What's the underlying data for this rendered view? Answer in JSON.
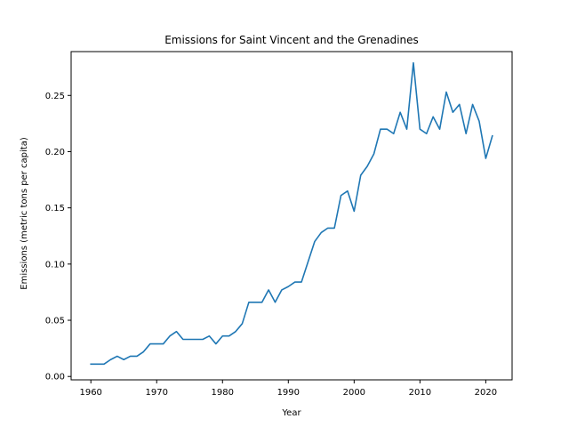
{
  "chart_data": {
    "type": "line",
    "title": "Emissions for Saint Vincent and the Grenadines",
    "xlabel": "Year",
    "ylabel": "Emissions (metric tons per capita)",
    "xlim": [
      1957,
      2024
    ],
    "ylim": [
      -0.003,
      0.289
    ],
    "xticks": [
      1960,
      1970,
      1980,
      1990,
      2000,
      2010,
      2020
    ],
    "yticks": [
      0.0,
      0.05,
      0.1,
      0.15,
      0.2,
      0.25
    ],
    "ytick_labels": [
      "0.00",
      "0.05",
      "0.10",
      "0.15",
      "0.20",
      "0.25"
    ],
    "grid": false,
    "line_color": "#1f77b4",
    "series": [
      {
        "x": [
          1960,
          1961,
          1962,
          1963,
          1964,
          1965,
          1966,
          1967,
          1968,
          1969,
          1970,
          1971,
          1972,
          1973,
          1974,
          1975,
          1976,
          1977,
          1978,
          1979,
          1980,
          1981,
          1982,
          1983,
          1984,
          1985,
          1986,
          1987,
          1988,
          1989,
          1990,
          1991,
          1992,
          1993,
          1994,
          1995,
          1996,
          1997,
          1998,
          1999,
          2000,
          2001,
          2002,
          2003,
          2004,
          2005,
          2006,
          2007,
          2008,
          2009,
          2010,
          2011,
          2012,
          2013,
          2014,
          2015,
          2016,
          2017,
          2018,
          2019,
          2020,
          2021
        ],
        "values": [
          0.011,
          0.011,
          0.011,
          0.015,
          0.018,
          0.015,
          0.018,
          0.018,
          0.022,
          0.029,
          0.029,
          0.029,
          0.036,
          0.04,
          0.033,
          0.033,
          0.033,
          0.033,
          0.036,
          0.029,
          0.036,
          0.036,
          0.04,
          0.047,
          0.066,
          0.066,
          0.066,
          0.077,
          0.066,
          0.077,
          0.08,
          0.084,
          0.084,
          0.102,
          0.12,
          0.128,
          0.132,
          0.132,
          0.161,
          0.165,
          0.147,
          0.179,
          0.187,
          0.198,
          0.22,
          0.22,
          0.216,
          0.235,
          0.22,
          0.279,
          0.22,
          0.216,
          0.231,
          0.22,
          0.253,
          0.235,
          0.242,
          0.216,
          0.242,
          0.227,
          0.194,
          0.214
        ]
      }
    ]
  }
}
